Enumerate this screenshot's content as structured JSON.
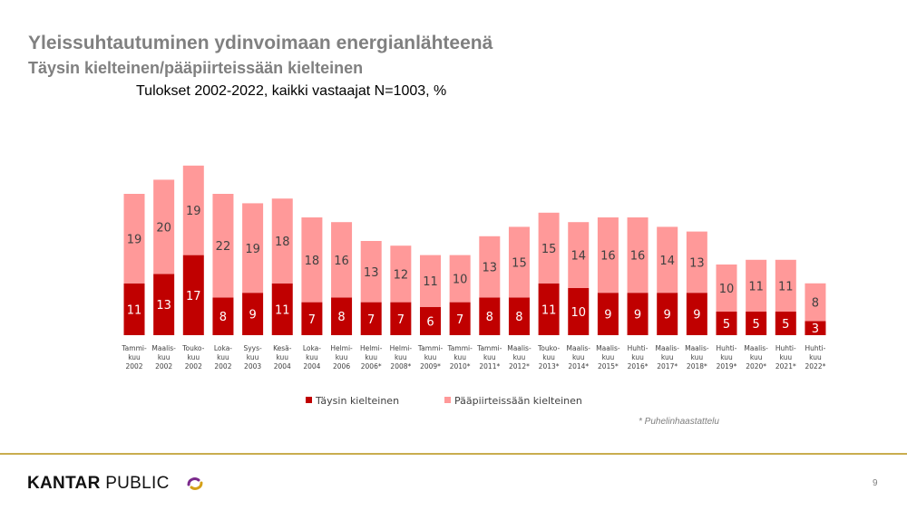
{
  "header": {
    "title": "Yleissuhtautuminen ydinvoimaan energianlähteenä",
    "subtitle": "Täysin kielteinen/pääpiirteissään kielteinen",
    "caption": "Tulokset 2002-2022, kaikki vastaajat N=1003, %"
  },
  "chart_data": {
    "type": "bar",
    "stacked": true,
    "categories": [
      [
        "Tammi-",
        "kuu",
        "2002"
      ],
      [
        "Maalis-",
        "kuu",
        "2002"
      ],
      [
        "Touko-",
        "kuu",
        "2002"
      ],
      [
        "Loka-",
        "kuu",
        "2002"
      ],
      [
        "Syys-",
        "kuu",
        "2003"
      ],
      [
        "Kesä-",
        "kuu",
        "2004"
      ],
      [
        "Loka-",
        "kuu",
        "2004"
      ],
      [
        "Helmi-",
        "kuu",
        "2006"
      ],
      [
        "Helmi-",
        "kuu",
        "2006*"
      ],
      [
        "Helmi-",
        "kuu",
        "2008*"
      ],
      [
        "Tammi-",
        "kuu",
        "2009*"
      ],
      [
        "Tammi-",
        "kuu",
        "2010*"
      ],
      [
        "Tammi-",
        "kuu",
        "2011*"
      ],
      [
        "Maalis-",
        "kuu",
        "2012*"
      ],
      [
        "Touko-",
        "kuu",
        "2013*"
      ],
      [
        "Maalis-",
        "kuu",
        "2014*"
      ],
      [
        "Maalis-",
        "kuu",
        "2015*"
      ],
      [
        "Huhti-",
        "kuu",
        "2016*"
      ],
      [
        "Maalis-",
        "kuu",
        "2017*"
      ],
      [
        "Maalis-",
        "kuu",
        "2018*"
      ],
      [
        "Huhti-",
        "kuu",
        "2019*"
      ],
      [
        "Maalis-",
        "kuu",
        "2020*"
      ],
      [
        "Huhti-",
        "kuu",
        "2021*"
      ],
      [
        "Huhti-",
        "kuu",
        "2022*"
      ]
    ],
    "series": [
      {
        "name": "Täysin kielteinen",
        "color": "#c00000",
        "values": [
          11,
          13,
          17,
          8,
          9,
          11,
          7,
          8,
          7,
          7,
          6,
          7,
          8,
          8,
          11,
          10,
          9,
          9,
          9,
          9,
          5,
          5,
          5,
          3
        ]
      },
      {
        "name": "Pääpiirteissään kielteinen",
        "color": "#ff9999",
        "values": [
          19,
          20,
          19,
          22,
          19,
          18,
          18,
          16,
          13,
          12,
          11,
          10,
          13,
          15,
          15,
          14,
          16,
          16,
          14,
          13,
          10,
          11,
          11,
          8
        ]
      }
    ],
    "legend_position": "bottom",
    "grid": false
  },
  "footnote": "* Puhelinhaastattelu",
  "footer": {
    "brand_bold": "KANTAR",
    "brand_rest": " PUBLIC",
    "page_number": "9"
  }
}
